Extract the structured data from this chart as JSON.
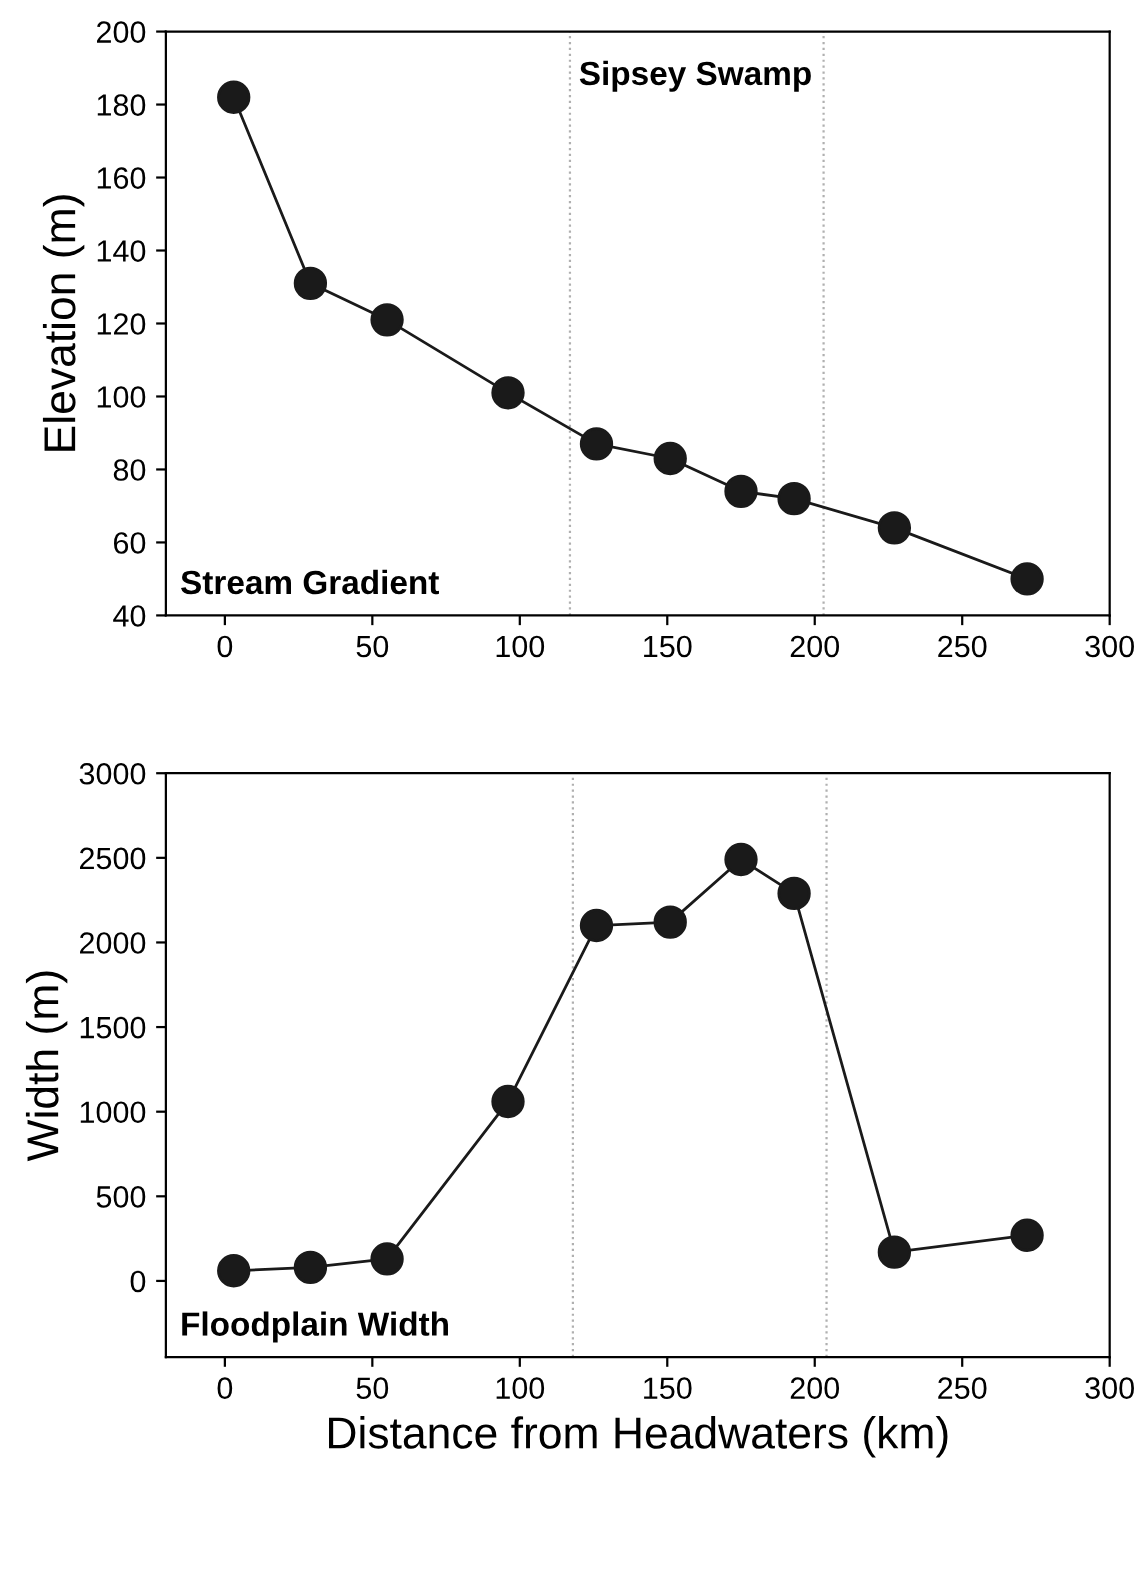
{
  "chart_data": [
    {
      "type": "line",
      "ylabel": "Elevation (m)",
      "x": [
        3,
        29,
        55,
        96,
        126,
        151,
        175,
        193,
        227,
        272
      ],
      "series": [
        {
          "color": "#1a1a1a",
          "values": [
            182,
            131,
            121,
            101,
            87,
            83,
            74,
            72,
            64,
            50
          ]
        }
      ],
      "xlim": [
        -20,
        300
      ],
      "xticks": [
        0,
        50,
        100,
        150,
        200,
        250,
        300
      ],
      "ylim": [
        40,
        200
      ],
      "yticks": [
        40,
        60,
        80,
        100,
        120,
        140,
        160,
        180,
        200
      ],
      "ref_lines": [
        {
          "axis": "x",
          "value": 117,
          "color": "#b0b0b0",
          "line_style": "dotted"
        },
        {
          "axis": "x",
          "value": 203,
          "color": "#b0b0b0",
          "line_style": "dotted"
        }
      ],
      "annotations": [
        "Sipsey Swamp",
        "Stream Gradient"
      ],
      "marker": "circle",
      "line_style": "solid",
      "grid": false,
      "legend": false
    },
    {
      "type": "line",
      "xlabel": "Distance from Headwaters (km)",
      "ylabel": "Width (m)",
      "x": [
        3,
        29,
        55,
        96,
        126,
        151,
        175,
        193,
        227,
        272
      ],
      "series": [
        {
          "color": "#1a1a1a",
          "values": [
            60,
            80,
            130,
            1060,
            2100,
            2120,
            2490,
            2290,
            170,
            270
          ]
        }
      ],
      "xlim": [
        -20,
        300
      ],
      "xticks": [
        0,
        50,
        100,
        150,
        200,
        250,
        300
      ],
      "ylim": [
        -450,
        3000
      ],
      "yticks": [
        0,
        500,
        1000,
        1500,
        2000,
        2500,
        3000
      ],
      "ref_lines": [
        {
          "axis": "x",
          "value": 118,
          "color": "#b0b0b0",
          "line_style": "dotted"
        },
        {
          "axis": "x",
          "value": 204,
          "color": "#b0b0b0",
          "line_style": "dotted"
        }
      ],
      "annotations": [
        "Floodplain Width"
      ],
      "marker": "circle",
      "line_style": "solid",
      "grid": false,
      "legend": false
    }
  ]
}
